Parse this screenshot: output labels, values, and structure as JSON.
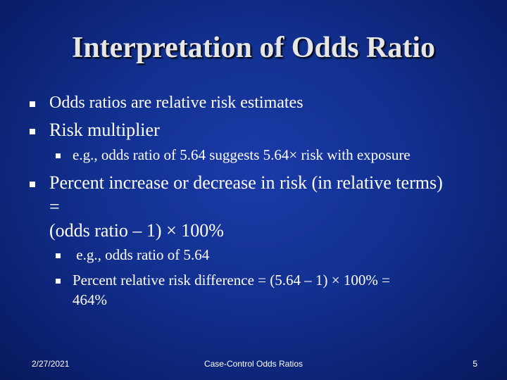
{
  "slide": {
    "title": "Interpretation of Odds Ratio",
    "bullets": [
      {
        "text": "Odds ratios are relative risk estimates"
      },
      {
        "text": "Risk multiplier"
      },
      {
        "text": "e.g., odds ratio of 5.64 suggests 5.64× risk with exposure"
      },
      {
        "text_line1": "Percent increase or decrease in risk (in relative terms)",
        "text_line2": "=",
        "text_line3": "(odds ratio – 1) × 100%"
      },
      {
        "text": " e.g., odds ratio of 5.64"
      },
      {
        "text_line1": "Percent relative risk difference = (5.64 – 1) × 100% =",
        "text_line2": "464%"
      }
    ]
  },
  "footer": {
    "date": "2/27/2021",
    "center": "Case-Control Odds Ratios",
    "page_number": "5"
  },
  "colors": {
    "background": "#12308f",
    "title": "#e6e6e6",
    "text": "#ffffff"
  }
}
